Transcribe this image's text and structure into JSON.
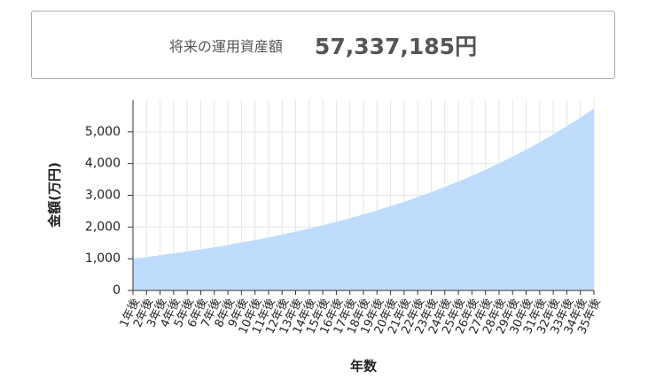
{
  "summary": {
    "label": "将来の運用資産額",
    "value": "57,337,185円"
  },
  "chart_data": {
    "type": "area",
    "y_label": "金額(万円)",
    "x_label": "年数",
    "categories": [
      "1年後",
      "2年後",
      "3年後",
      "4年後",
      "5年後",
      "6年後",
      "7年後",
      "8年後",
      "9年後",
      "10年後",
      "11年後",
      "12年後",
      "13年後",
      "14年後",
      "15年後",
      "16年後",
      "17年後",
      "18年後",
      "19年後",
      "20年後",
      "21年後",
      "22年後",
      "23年後",
      "24年後",
      "25年後",
      "26年後",
      "27年後",
      "28年後",
      "29年後",
      "30年後",
      "31年後",
      "32年後",
      "33年後",
      "34年後",
      "35年後"
    ],
    "values": [
      1000,
      1053,
      1108,
      1167,
      1228,
      1293,
      1361,
      1433,
      1509,
      1588,
      1672,
      1760,
      1853,
      1951,
      2054,
      2162,
      2276,
      2396,
      2522,
      2655,
      2795,
      2942,
      3097,
      3261,
      3433,
      3614,
      3804,
      4005,
      4216,
      4438,
      4672,
      4918,
      5177,
      5450,
      5734
    ],
    "color": "#bfdcfd",
    "ylim": [
      0,
      6000
    ],
    "yticks": [
      0,
      {
        "value": 1000,
        "label": "1,000"
      },
      {
        "value": 2000,
        "label": "2,000"
      },
      {
        "value": 3000,
        "label": "3,000"
      },
      {
        "value": 4000,
        "label": "4,000"
      },
      {
        "value": 5000,
        "label": "5,000"
      }
    ],
    "grid": true
  }
}
